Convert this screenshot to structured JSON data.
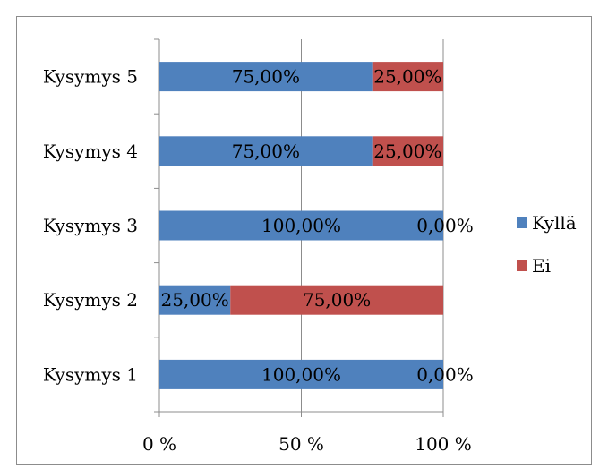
{
  "chart_data": {
    "type": "bar",
    "orientation": "horizontal",
    "stacked": "percent",
    "categories": [
      "Kysymys 1",
      "Kysymys 2",
      "Kysymys 3",
      "Kysymys 4",
      "Kysymys 5"
    ],
    "series": [
      {
        "name": "Kyllä",
        "color": "#4F81BD",
        "values": [
          1.0,
          0.25,
          1.0,
          0.75,
          0.75
        ],
        "labels": [
          "100,00%",
          "25,00%",
          "100,00%",
          "75,00%",
          "75,00%"
        ]
      },
      {
        "name": "Ei",
        "color": "#C0504D",
        "values": [
          0.0,
          0.75,
          0.0,
          0.25,
          0.25
        ],
        "labels": [
          "0,00%",
          "75,00%",
          "0,00%",
          "25,00%",
          "25,00%"
        ]
      }
    ],
    "x_ticks": [
      "0 %",
      "50 %",
      "100 %"
    ],
    "xlim": [
      0,
      1
    ],
    "grid": "vertical",
    "legend_position": "right"
  }
}
